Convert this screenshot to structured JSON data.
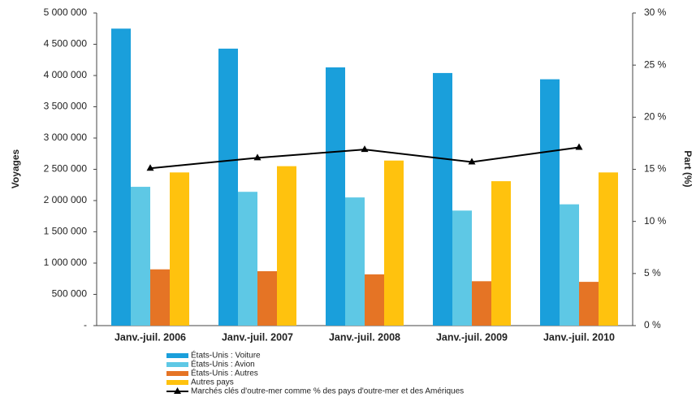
{
  "chart_data": {
    "type": "bar",
    "categories": [
      "Janv.-juil. 2006",
      "Janv.-juil. 2007",
      "Janv.-juil. 2008",
      "Janv.-juil. 2009",
      "Janv.-juil. 2010"
    ],
    "y_label": "Voyages",
    "y2_label": "Part (%)",
    "series": [
      {
        "name": "États-Unis : Voiture",
        "color": "#1a9fdb",
        "values": [
          4750000,
          4430000,
          4130000,
          4040000,
          3940000
        ]
      },
      {
        "name": "États-Unis : Avion",
        "color": "#5ec8e5",
        "values": [
          2220000,
          2140000,
          2050000,
          1840000,
          1940000
        ]
      },
      {
        "name": "États-Unis : Autres",
        "color": "#e57425",
        "values": [
          900000,
          870000,
          820000,
          710000,
          700000
        ]
      },
      {
        "name": "Autres pays",
        "color": "#ffc20e",
        "values": [
          2450000,
          2550000,
          2640000,
          2310000,
          2450000
        ]
      },
      {
        "name": "Marchés clés d'outre-mer comme % des pays d'outre-mer et des Amériques",
        "color": "#000000",
        "type": "line",
        "axis": "y2",
        "values": [
          15.1,
          16.1,
          16.9,
          15.7,
          17.1
        ]
      }
    ],
    "ylim": [
      0,
      5000000
    ],
    "yticks": [
      {
        "value": 0,
        "label": "-"
      },
      {
        "value": 500000,
        "label": "500 000"
      },
      {
        "value": 1000000,
        "label": "1 000 000"
      },
      {
        "value": 1500000,
        "label": "1 500 000"
      },
      {
        "value": 2000000,
        "label": "2 000 000"
      },
      {
        "value": 2500000,
        "label": "2 500 000"
      },
      {
        "value": 3000000,
        "label": "3 000 000"
      },
      {
        "value": 3500000,
        "label": "3 500 000"
      },
      {
        "value": 4000000,
        "label": "4 000 000"
      },
      {
        "value": 4500000,
        "label": "4 500 000"
      },
      {
        "value": 5000000,
        "label": "5 000 000"
      }
    ],
    "y2lim": [
      0,
      30
    ],
    "y2ticks": [
      {
        "value": 0,
        "label": "0 %"
      },
      {
        "value": 5,
        "label": "5 %"
      },
      {
        "value": 10,
        "label": "10 %"
      },
      {
        "value": 15,
        "label": "15 %"
      },
      {
        "value": 20,
        "label": "20 %"
      },
      {
        "value": 25,
        "label": "25 %"
      },
      {
        "value": 30,
        "label": "30 %"
      }
    ]
  }
}
